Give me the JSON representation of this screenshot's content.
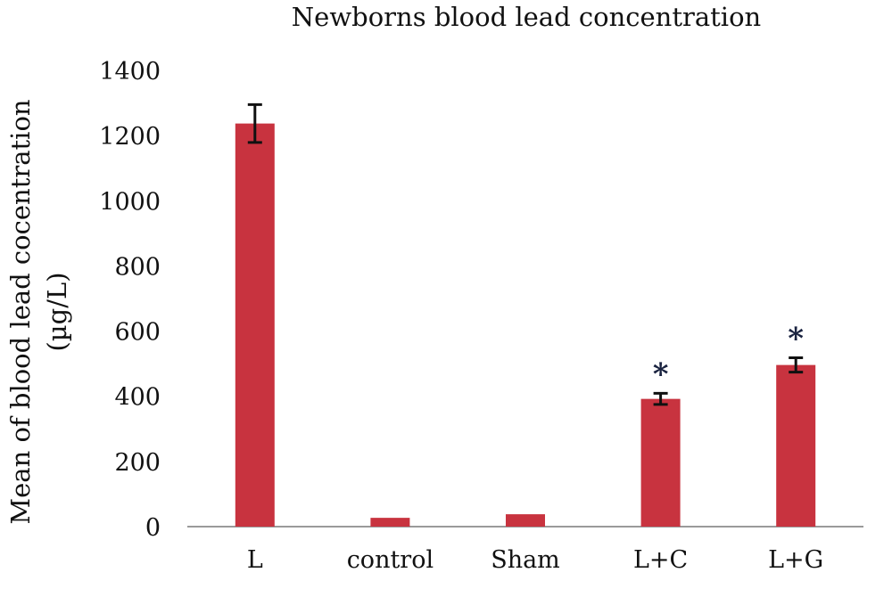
{
  "chart_data": {
    "type": "bar",
    "title": "Newborns blood lead concentration",
    "ylabel_line1": "Mean of blood lead cocentration",
    "ylabel_line2": "(µg/L)",
    "xlabel": "",
    "categories": [
      "L",
      "control",
      "Sham",
      "L+C",
      "L+G"
    ],
    "values": [
      1237,
      27,
      38,
      392,
      496
    ],
    "error": [
      58,
      0,
      0,
      17,
      22
    ],
    "annotations": [
      "",
      "",
      "",
      "*",
      "*"
    ],
    "ylim": [
      0,
      1400
    ],
    "yticks": [
      0,
      200,
      400,
      600,
      800,
      1000,
      1200,
      1400
    ],
    "grid": false,
    "bar_color": "#c8333f"
  }
}
